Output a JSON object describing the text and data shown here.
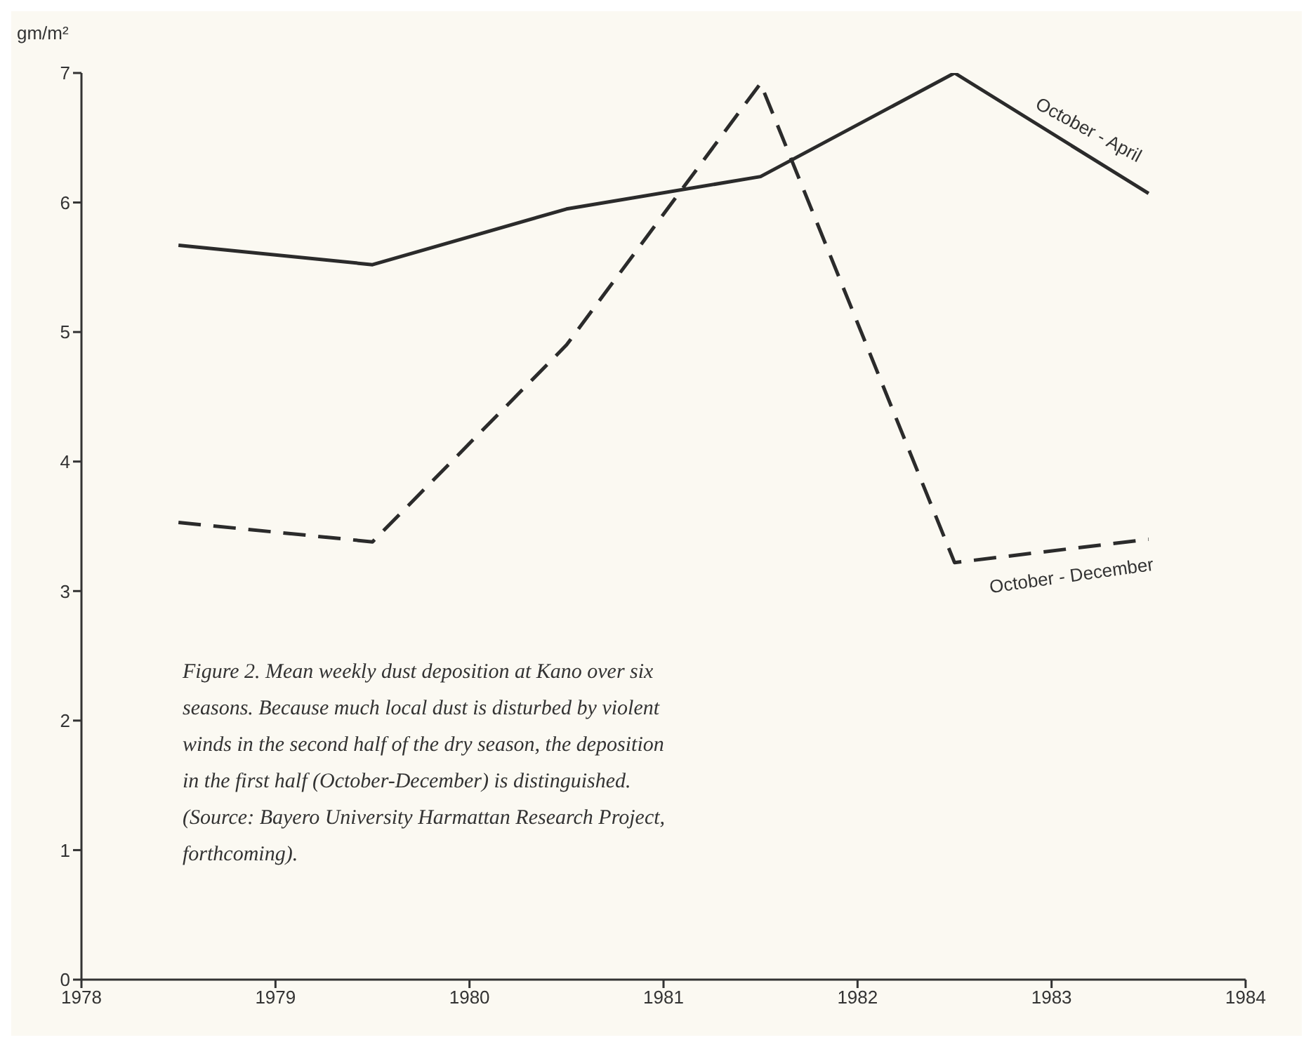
{
  "chart_data": {
    "type": "line",
    "ylabel": "gm/m²",
    "x": [
      1978.5,
      1979.5,
      1980.5,
      1981.5,
      1982.5,
      1983.5
    ],
    "series": [
      {
        "name": "October - April",
        "color": "#2b2b2b",
        "line_style": "solid",
        "values": [
          5.67,
          5.52,
          5.95,
          6.2,
          7,
          6.07
        ]
      },
      {
        "name": "October - December",
        "color": "#2b2b2b",
        "line_style": "dashed",
        "values": [
          3.53,
          3.38,
          4.9,
          6.92,
          3.22,
          3.4
        ]
      }
    ],
    "xlim": [
      1978,
      1984
    ],
    "xticks": [
      1978,
      1979,
      1980,
      1981,
      1982,
      1983,
      1984
    ],
    "ylim": [
      0,
      7
    ],
    "yticks": [
      0,
      1,
      2,
      3,
      4,
      5,
      6,
      7
    ],
    "annotations": [
      "Figure 2. Mean weekly dust deposition at Kano over six seasons. Because much local dust is disturbed by violent winds in the second half of the dry season, the deposition in the first half (October-December) is distinguished. (Source: Bayero University Harmattan Research Project, forthcoming)."
    ]
  }
}
